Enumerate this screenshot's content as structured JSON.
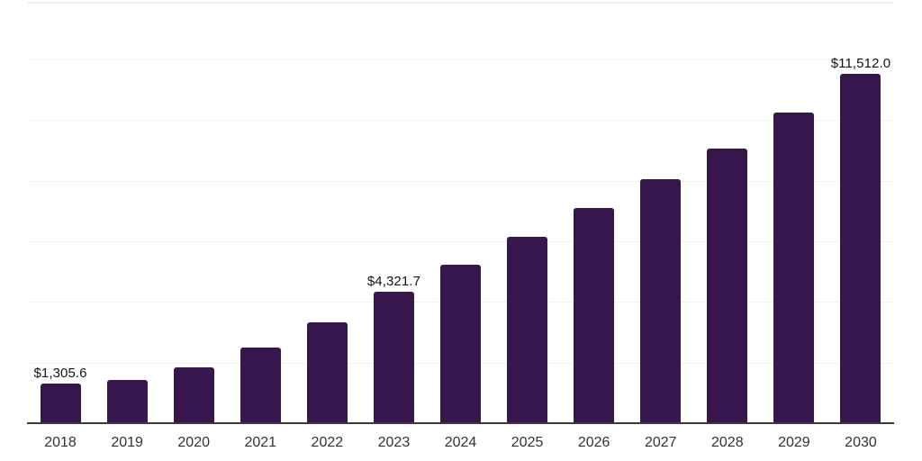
{
  "chart_data": {
    "type": "bar",
    "title": "",
    "xlabel": "",
    "ylabel": "",
    "categories": [
      "2018",
      "2019",
      "2020",
      "2021",
      "2022",
      "2023",
      "2024",
      "2025",
      "2026",
      "2027",
      "2028",
      "2029",
      "2030"
    ],
    "values": [
      1305.6,
      1440.0,
      1845.0,
      2500.0,
      3320.0,
      4321.7,
      5215.0,
      6145.0,
      7085.0,
      8055.0,
      9065.0,
      10235.0,
      11512.0
    ],
    "bar_labels": [
      "$1,305.6",
      null,
      null,
      null,
      null,
      "$4,321.7",
      null,
      null,
      null,
      null,
      null,
      null,
      "$11,512.0"
    ],
    "ylim": [
      0,
      13950
    ],
    "gridline_step": 2000,
    "grid": true,
    "legend": false,
    "colors": {
      "bar_fill": "#36164d",
      "axis_line": "#3a3a3a",
      "gridline": "#f2f2f3",
      "data_label": "#141414",
      "tick_label": "#333333",
      "background": "#ffffff"
    }
  }
}
